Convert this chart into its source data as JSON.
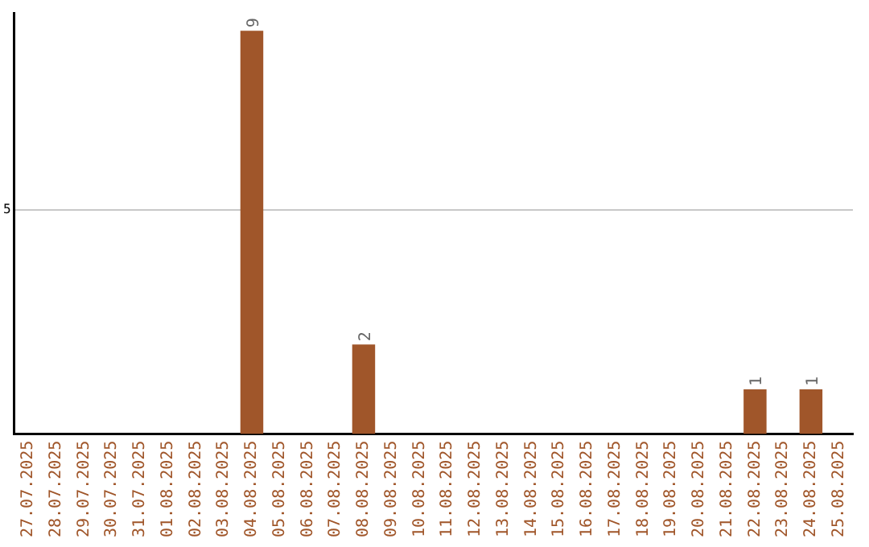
{
  "chart_data": {
    "type": "bar",
    "categories": [
      "27.07.2025",
      "28.07.2025",
      "29.07.2025",
      "30.07.2025",
      "31.07.2025",
      "01.08.2025",
      "02.08.2025",
      "03.08.2025",
      "04.08.2025",
      "05.08.2025",
      "06.08.2025",
      "07.08.2025",
      "08.08.2025",
      "09.08.2025",
      "10.08.2025",
      "11.08.2025",
      "12.08.2025",
      "13.08.2025",
      "14.08.2025",
      "15.08.2025",
      "16.08.2025",
      "17.08.2025",
      "18.08.2025",
      "19.08.2025",
      "20.08.2025",
      "21.08.2025",
      "22.08.2025",
      "23.08.2025",
      "24.08.2025",
      "25.08.2025"
    ],
    "values": [
      0,
      0,
      0,
      0,
      0,
      0,
      0,
      0,
      9,
      0,
      0,
      0,
      2,
      0,
      0,
      0,
      0,
      0,
      0,
      0,
      0,
      0,
      0,
      0,
      0,
      0,
      1,
      0,
      1,
      0
    ],
    "value_labels": [
      null,
      null,
      null,
      null,
      null,
      null,
      null,
      null,
      "9",
      null,
      null,
      null,
      "2",
      null,
      null,
      null,
      null,
      null,
      null,
      null,
      null,
      null,
      null,
      null,
      null,
      null,
      "1",
      null,
      "1",
      null
    ],
    "color": "#a0562a",
    "ylim": [
      0,
      9.4
    ],
    "yticks": [
      5
    ],
    "grid": "y",
    "legend": false
  }
}
